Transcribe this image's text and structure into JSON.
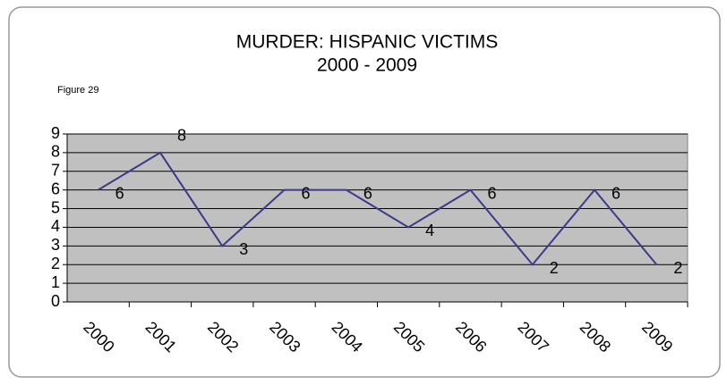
{
  "chart_data": {
    "type": "line",
    "title": "MURDER:  HISPANIC VICTIMS",
    "subtitle": "2000 - 2009",
    "annotation": "Figure 29",
    "categories": [
      "2000",
      "2001",
      "2002",
      "2003",
      "2004",
      "2005",
      "2006",
      "2007",
      "2008",
      "2009"
    ],
    "series": [
      {
        "name": "Hispanic victims",
        "color": "#3a3a8c",
        "values": [
          6,
          8,
          3,
          6,
          6,
          4,
          6,
          2,
          6,
          2
        ]
      }
    ],
    "ylim": [
      0,
      9
    ],
    "yticks": [
      0,
      1,
      2,
      3,
      4,
      5,
      6,
      7,
      8,
      9
    ],
    "grid": true,
    "data_labels": true
  }
}
